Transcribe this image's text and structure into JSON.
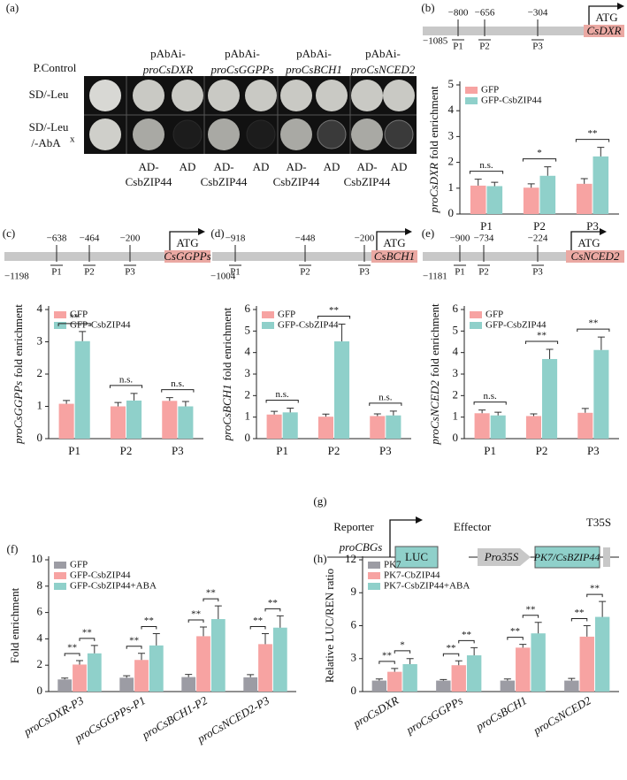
{
  "panel_a": {
    "label": "(a)",
    "control": "P.Control",
    "prefix": "pAbAi-",
    "constructs": [
      "proCsDXR",
      "proCsGGPPs",
      "proCsBCH1",
      "proCsNCED2"
    ],
    "row1": "SD/-Leu",
    "row2": [
      "SD/-Leu",
      "/-AbA"
    ],
    "row2_sup": "x",
    "effector": [
      "AD-",
      "CsbZIP44"
    ],
    "empty": "AD"
  },
  "promoters": [
    {
      "label": "(b)",
      "start": "−1085",
      "sites": [
        "−800",
        "−656",
        "−304"
      ],
      "regions": [
        "P1",
        "P2",
        "P3"
      ],
      "gene": "CsDXR",
      "atg": "ATG"
    },
    {
      "label": "(c)",
      "start": "−1198",
      "sites": [
        "−638",
        "−464",
        "−200"
      ],
      "regions": [
        "P1",
        "P2",
        "P3"
      ],
      "gene": "CsGGPPs",
      "atg": "ATG"
    },
    {
      "label": "(d)",
      "start": "−1004",
      "sites": [
        "−918",
        "−448",
        "−200"
      ],
      "regions": [
        "P1",
        "P2",
        "P3"
      ],
      "gene": "CsBCH1",
      "atg": "ATG"
    },
    {
      "label": "(e)",
      "start": "−1181",
      "sites": [
        "−900",
        "−734",
        "−224"
      ],
      "regions": [
        "P1",
        "P2",
        "P3"
      ],
      "gene": "CsNCED2",
      "atg": "ATG"
    }
  ],
  "panel_g": {
    "label": "(g)",
    "reporter": "Reporter",
    "effector": "Effector",
    "promoter": "proCBGs",
    "luc": "LUC",
    "pro35s": "Pro35S",
    "gene": "PK7/CsBZIP44",
    "terminator": "T35S"
  },
  "chart_data": [
    {
      "type": "bar",
      "ylabel_italic": "proCsDXR",
      "ylabel": "fold enrichment",
      "categories": [
        "P1",
        "P2",
        "P3"
      ],
      "series": [
        {
          "name": "GFP",
          "color": "#f7a3a2",
          "values": [
            1.1,
            1.02,
            1.17
          ],
          "errors": [
            0.25,
            0.15,
            0.2
          ]
        },
        {
          "name": "GFP-CsbZIP44",
          "color": "#8fd0ca",
          "values": [
            1.08,
            1.48,
            2.23
          ],
          "errors": [
            0.15,
            0.35,
            0.35
          ]
        }
      ],
      "annotations": [
        "n.s.",
        "*",
        "**"
      ],
      "ylim": [
        0,
        5
      ],
      "yticks": [
        0,
        1,
        2,
        3,
        4,
        5
      ]
    },
    {
      "type": "bar",
      "ylabel_italic": "proCsGGPPs",
      "ylabel": "fold enrichment",
      "categories": [
        "P1",
        "P2",
        "P3"
      ],
      "series": [
        {
          "name": "GFP",
          "color": "#f7a3a2",
          "values": [
            1.08,
            1.0,
            1.17
          ],
          "errors": [
            0.1,
            0.12,
            0.1
          ]
        },
        {
          "name": "GFP-CsbZIP44",
          "color": "#8fd0ca",
          "values": [
            3.02,
            1.18,
            1.0
          ],
          "errors": [
            0.3,
            0.22,
            0.15
          ]
        }
      ],
      "annotations": [
        "**",
        "n.s.",
        "n.s."
      ],
      "ylim": [
        0,
        4
      ],
      "yticks": [
        0,
        1,
        2,
        3,
        4
      ]
    },
    {
      "type": "bar",
      "ylabel_italic": "proCsBCH1",
      "ylabel": "fold enrichment",
      "categories": [
        "P1",
        "P2",
        "P3"
      ],
      "series": [
        {
          "name": "GFP",
          "color": "#f7a3a2",
          "values": [
            1.12,
            1.02,
            1.05
          ],
          "errors": [
            0.15,
            0.12,
            0.1
          ]
        },
        {
          "name": "GFP-CsbZIP44",
          "color": "#8fd0ca",
          "values": [
            1.22,
            4.52,
            1.08
          ],
          "errors": [
            0.2,
            0.8,
            0.2
          ]
        }
      ],
      "annotations": [
        "n.s.",
        "**",
        "n.s."
      ],
      "ylim": [
        0,
        6
      ],
      "yticks": [
        0,
        1,
        2,
        3,
        4,
        5,
        6
      ]
    },
    {
      "type": "bar",
      "ylabel_italic": "proCsNCED2",
      "ylabel": "fold enrichment",
      "categories": [
        "P1",
        "P2",
        "P3"
      ],
      "series": [
        {
          "name": "GFP",
          "color": "#f7a3a2",
          "values": [
            1.18,
            1.05,
            1.2
          ],
          "errors": [
            0.15,
            0.1,
            0.2
          ]
        },
        {
          "name": "GFP-CsbZIP44",
          "color": "#8fd0ca",
          "values": [
            1.08,
            3.7,
            4.12
          ],
          "errors": [
            0.15,
            0.45,
            0.6
          ]
        }
      ],
      "annotations": [
        "n.s.",
        "**",
        "**"
      ],
      "ylim": [
        0,
        6
      ],
      "yticks": [
        0,
        1,
        2,
        3,
        4,
        5,
        6
      ]
    },
    {
      "type": "bar",
      "label": "(f)",
      "ylabel": "Fold enrichment",
      "categories": [
        "proCsDXR-P3",
        "proCsGGPPs-P1",
        "proCsBCH1-P2",
        "proCsNCED2-P3"
      ],
      "series": [
        {
          "name": "GFP",
          "color": "#9c9ca4",
          "values": [
            0.92,
            1.05,
            1.1,
            1.08
          ],
          "errors": [
            0.1,
            0.15,
            0.2,
            0.2
          ]
        },
        {
          "name": "GFP-CsbZIP44",
          "color": "#f7a3a2",
          "values": [
            2.05,
            2.4,
            4.2,
            3.6
          ],
          "errors": [
            0.3,
            0.5,
            0.7,
            0.8
          ]
        },
        {
          "name": "GFP-CsbZIP44+ABA",
          "color": "#8fd0ca",
          "values": [
            2.9,
            3.5,
            5.5,
            4.85
          ],
          "errors": [
            0.6,
            0.9,
            1.0,
            0.9
          ]
        }
      ],
      "annotations": [
        [
          "**",
          "**"
        ],
        [
          "**",
          "**"
        ],
        [
          "**",
          "**"
        ],
        [
          "**",
          "**"
        ]
      ],
      "ylim": [
        0,
        10
      ],
      "yticks": [
        0,
        2,
        4,
        6,
        8,
        10
      ]
    },
    {
      "type": "bar",
      "label": "(h)",
      "ylabel": "Relative LUC/REN ratio",
      "categories": [
        "proCsDXR",
        "proCsGGPPs",
        "proCsBCH1",
        "proCsNCED2"
      ],
      "series": [
        {
          "name": "PK7",
          "color": "#9c9ca4",
          "values": [
            1.0,
            1.0,
            1.0,
            1.0
          ],
          "errors": [
            0.15,
            0.1,
            0.15,
            0.2
          ]
        },
        {
          "name": "PK7-CbZIP44",
          "color": "#f7a3a2",
          "values": [
            1.8,
            2.4,
            4.0,
            5.0
          ],
          "errors": [
            0.3,
            0.4,
            0.3,
            1.0
          ]
        },
        {
          "name": "PK7-CsbZIP44+ABA",
          "color": "#8fd0ca",
          "values": [
            2.5,
            3.3,
            5.3,
            6.8
          ],
          "errors": [
            0.5,
            0.7,
            1.0,
            1.4
          ]
        }
      ],
      "annotations": [
        [
          "**",
          "*"
        ],
        [
          "**",
          "**"
        ],
        [
          "**",
          "**"
        ],
        [
          "**",
          "**"
        ]
      ],
      "ylim": [
        0,
        12
      ],
      "yticks": [
        0,
        3,
        6,
        9,
        12
      ]
    }
  ]
}
